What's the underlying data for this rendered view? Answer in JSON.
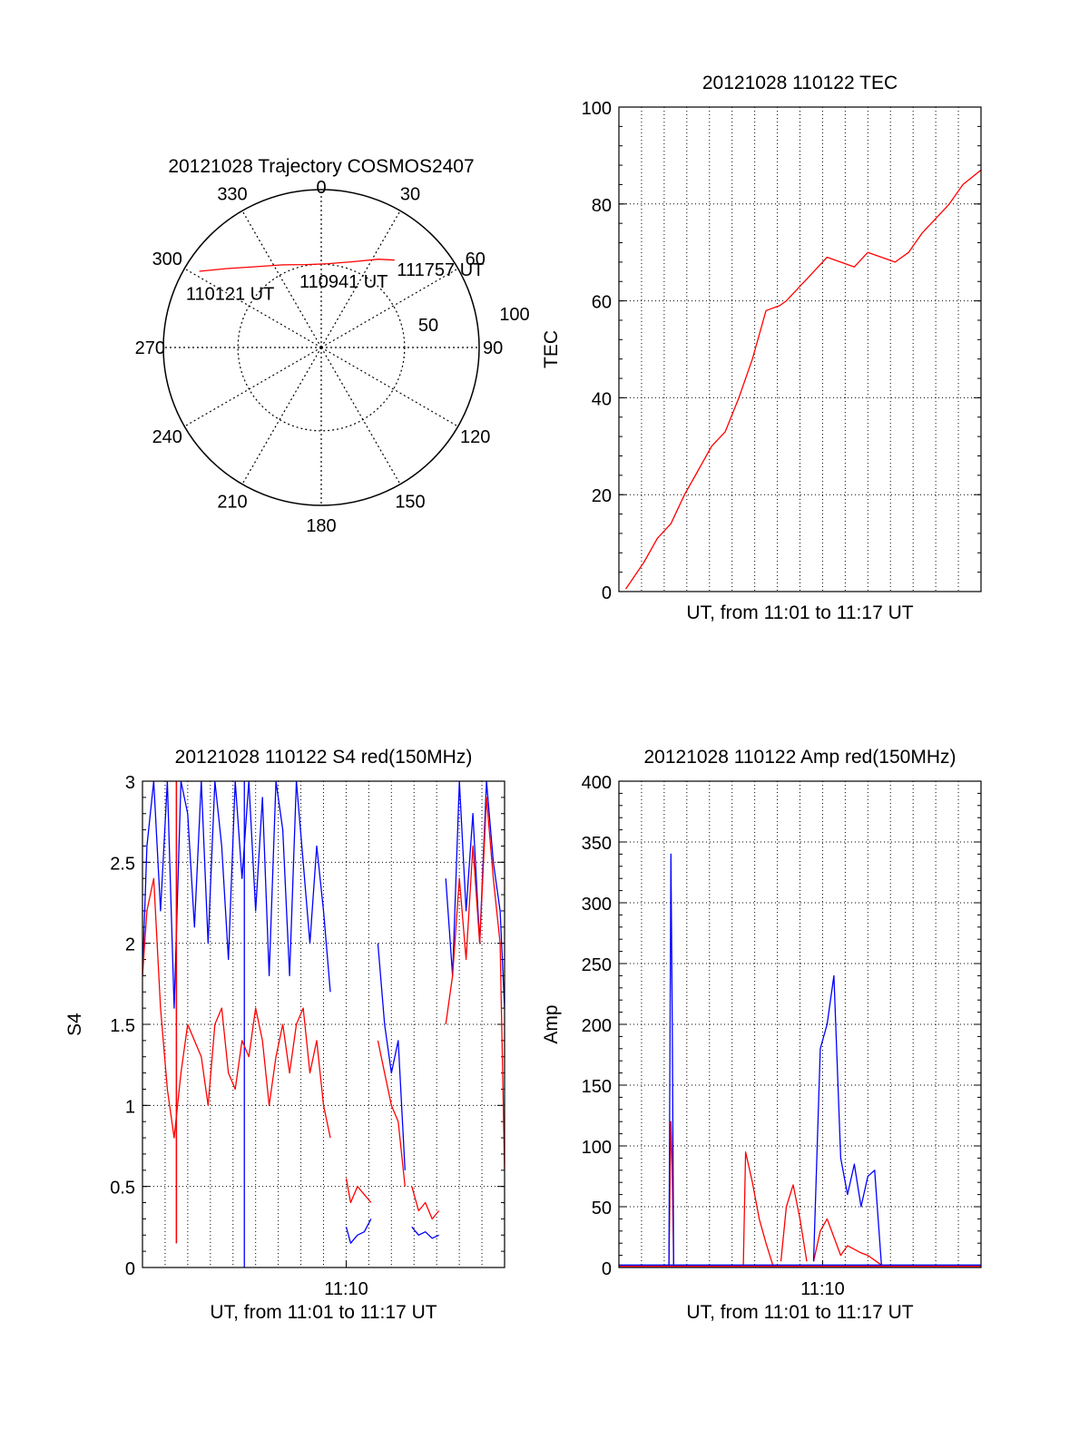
{
  "colors": {
    "red": "#ff0000",
    "blue": "#0000ff",
    "axis": "#000000",
    "grid": "#000000"
  },
  "chart_data": [
    {
      "id": "trajectory",
      "type": "polar",
      "title": "20121028 Trajectory COSMOS2407",
      "azimuth_labels": [
        "0",
        "30",
        "60",
        "90",
        "120",
        "150",
        "180",
        "210",
        "240",
        "270",
        "300",
        "330"
      ],
      "elevation_rings": [
        {
          "label": "50",
          "elevation": 50
        },
        {
          "label": "100",
          "elevation": 0
        }
      ],
      "series": [
        {
          "color": "red",
          "points_az_el": [
            [
              302,
              8
            ],
            [
              310,
              20
            ],
            [
              320,
              30
            ],
            [
              335,
              38
            ],
            [
              350,
              42
            ],
            [
              5,
              42
            ],
            [
              20,
              38
            ],
            [
              33,
              30
            ],
            [
              40,
              25
            ]
          ]
        }
      ],
      "annotations": [
        {
          "text": "110121 UT",
          "az": 295,
          "el": 6
        },
        {
          "text": "110941 UT",
          "az": 345,
          "el": 46
        },
        {
          "text": "111757 UT",
          "az": 42,
          "el": 24
        }
      ]
    },
    {
      "id": "tec",
      "type": "line",
      "title": "20121028 110122 TEC",
      "xlabel": "UT, from 11:01 to 11:17 UT",
      "ylabel": "TEC",
      "xlim": [
        11.0167,
        11.2833
      ],
      "ylim": [
        0,
        100
      ],
      "yticks": [
        "0",
        "20",
        "40",
        "60",
        "80",
        "100"
      ],
      "xticks": [],
      "series": [
        {
          "color": "red",
          "x": [
            11.0217,
            11.035,
            11.045,
            11.055,
            11.065,
            11.075,
            11.085,
            11.095,
            11.105,
            11.115,
            11.125,
            11.135,
            11.14,
            11.15,
            11.16,
            11.17,
            11.18,
            11.19,
            11.2,
            11.21,
            11.22,
            11.23,
            11.24,
            11.25,
            11.26,
            11.27,
            11.2833
          ],
          "y": [
            0.5,
            6,
            11,
            14,
            20,
            25,
            30,
            33,
            40,
            48,
            58,
            59,
            60,
            63,
            66,
            69,
            68,
            67,
            70,
            69,
            68,
            70,
            74,
            77,
            80,
            84,
            87
          ]
        }
      ]
    },
    {
      "id": "s4",
      "type": "line",
      "title": "20121028 110122 S4 red(150MHz)",
      "xlabel": "UT, from 11:01 to 11:17 UT",
      "ylabel": "S4",
      "xlim": [
        11.0167,
        11.2833
      ],
      "ylim": [
        0,
        3
      ],
      "yticks": [
        "0",
        "0.5",
        "1",
        "1.5",
        "2",
        "2.5",
        "3"
      ],
      "xticks": [
        {
          "label": "11:10",
          "value": 11.1667
        }
      ],
      "series": [
        {
          "color": "blue",
          "segments": [
            {
              "x": [
                11.0167,
                11.02,
                11.025,
                11.03,
                11.035,
                11.04,
                11.045,
                11.05,
                11.055,
                11.06,
                11.065,
                11.07,
                11.075,
                11.08,
                11.085,
                11.09,
                11.095,
                11.1,
                11.105,
                11.11,
                11.115,
                11.12,
                11.125,
                11.13,
                11.135,
                11.14,
                11.145,
                11.15,
                11.155
              ],
              "y": [
                1.8,
                2.6,
                3,
                2.2,
                3,
                1.6,
                3,
                2.8,
                2.1,
                3,
                2.0,
                3,
                2.6,
                1.9,
                3,
                2.4,
                3,
                2.2,
                2.9,
                1.8,
                3,
                2.7,
                1.8,
                3,
                2.5,
                2.0,
                2.6,
                2.2,
                1.7
              ]
            },
            {
              "x": [
                11.1667,
                11.17,
                11.175,
                11.18,
                11.185
              ],
              "y": [
                0.25,
                0.15,
                0.2,
                0.22,
                0.3
              ]
            },
            {
              "x": [
                11.19,
                11.195,
                11.2,
                11.205,
                11.21
              ],
              "y": [
                2.0,
                1.5,
                1.2,
                1.4,
                0.6
              ]
            },
            {
              "x": [
                11.215,
                11.22,
                11.225,
                11.23,
                11.235
              ],
              "y": [
                0.25,
                0.2,
                0.22,
                0.18,
                0.2
              ]
            },
            {
              "x": [
                11.24,
                11.245,
                11.25,
                11.255,
                11.26,
                11.265,
                11.27,
                11.275,
                11.28,
                11.2833
              ],
              "y": [
                2.4,
                1.8,
                3,
                2.2,
                2.8,
                2.0,
                3,
                2.5,
                2.2,
                1.6
              ]
            }
          ],
          "spikes": [
            {
              "x": 11.0417,
              "y": 0.15
            },
            {
              "x": 11.0917,
              "y": 0.0
            }
          ]
        },
        {
          "color": "red",
          "segments": [
            {
              "x": [
                11.0167,
                11.02,
                11.025,
                11.03,
                11.035,
                11.04,
                11.045,
                11.05,
                11.055,
                11.06,
                11.065,
                11.07,
                11.075,
                11.08,
                11.085,
                11.09,
                11.095,
                11.1,
                11.105,
                11.11,
                11.115,
                11.12,
                11.125,
                11.13,
                11.135,
                11.14,
                11.145,
                11.15,
                11.155
              ],
              "y": [
                1.8,
                2.2,
                2.4,
                1.6,
                1.1,
                0.8,
                1.2,
                1.5,
                1.4,
                1.3,
                1.0,
                1.5,
                1.6,
                1.2,
                1.1,
                1.4,
                1.3,
                1.6,
                1.4,
                1.0,
                1.3,
                1.5,
                1.2,
                1.5,
                1.6,
                1.2,
                1.4,
                1.0,
                0.8
              ]
            },
            {
              "x": [
                11.1667,
                11.17,
                11.175,
                11.18,
                11.185
              ],
              "y": [
                0.55,
                0.4,
                0.5,
                0.45,
                0.4
              ]
            },
            {
              "x": [
                11.19,
                11.195,
                11.2,
                11.205,
                11.21
              ],
              "y": [
                1.4,
                1.2,
                1.0,
                0.9,
                0.5
              ]
            },
            {
              "x": [
                11.215,
                11.22,
                11.225,
                11.23,
                11.235
              ],
              "y": [
                0.5,
                0.35,
                0.4,
                0.3,
                0.35
              ]
            },
            {
              "x": [
                11.24,
                11.245,
                11.25,
                11.255,
                11.26,
                11.265,
                11.27,
                11.275,
                11.28,
                11.2833
              ],
              "y": [
                1.5,
                1.8,
                2.4,
                1.9,
                2.6,
                2.0,
                2.9,
                2.4,
                2.0,
                0.6
              ]
            }
          ],
          "spikes": [
            {
              "x": 11.0417,
              "y": 0.15
            }
          ]
        }
      ]
    },
    {
      "id": "amp",
      "type": "line",
      "title": "20121028 110122 Amp red(150MHz)",
      "xlabel": "UT, from 11:01 to 11:17 UT",
      "ylabel": "Amp",
      "xlim": [
        11.0167,
        11.2833
      ],
      "ylim": [
        0,
        400
      ],
      "yticks": [
        "0",
        "50",
        "100",
        "150",
        "200",
        "250",
        "300",
        "350",
        "400"
      ],
      "xticks": [
        {
          "label": "11:10",
          "value": 11.1667
        }
      ],
      "series": [
        {
          "color": "red",
          "segments": [
            {
              "x": [
                11.0167,
                11.2833
              ],
              "y": [
                1,
                1
              ]
            },
            {
              "x": [
                11.0535,
                11.055,
                11.056,
                11.057
              ],
              "y": [
                2,
                120,
                80,
                2
              ]
            },
            {
              "x": [
                11.1083,
                11.11,
                11.115,
                11.12,
                11.125,
                11.13
              ],
              "y": [
                2,
                95,
                70,
                40,
                20,
                2
              ]
            },
            {
              "x": [
                11.136,
                11.14,
                11.145,
                11.15,
                11.155
              ],
              "y": [
                5,
                50,
                68,
                40,
                5
              ]
            },
            {
              "x": [
                11.16,
                11.165,
                11.17,
                11.175,
                11.18,
                11.185,
                11.19,
                11.195,
                11.2,
                11.21
              ],
              "y": [
                5,
                30,
                40,
                25,
                10,
                18,
                15,
                12,
                10,
                2
              ]
            }
          ]
        },
        {
          "color": "blue",
          "segments": [
            {
              "x": [
                11.0167,
                11.2833
              ],
              "y": [
                2,
                2
              ]
            },
            {
              "x": [
                11.0535,
                11.055,
                11.056,
                11.057
              ],
              "y": [
                2,
                340,
                200,
                2
              ]
            },
            {
              "x": [
                11.16,
                11.165,
                11.17,
                11.175,
                11.18,
                11.185,
                11.19,
                11.195,
                11.2,
                11.205,
                11.21
              ],
              "y": [
                5,
                180,
                200,
                240,
                90,
                60,
                85,
                50,
                75,
                80,
                2
              ]
            }
          ]
        }
      ]
    }
  ]
}
